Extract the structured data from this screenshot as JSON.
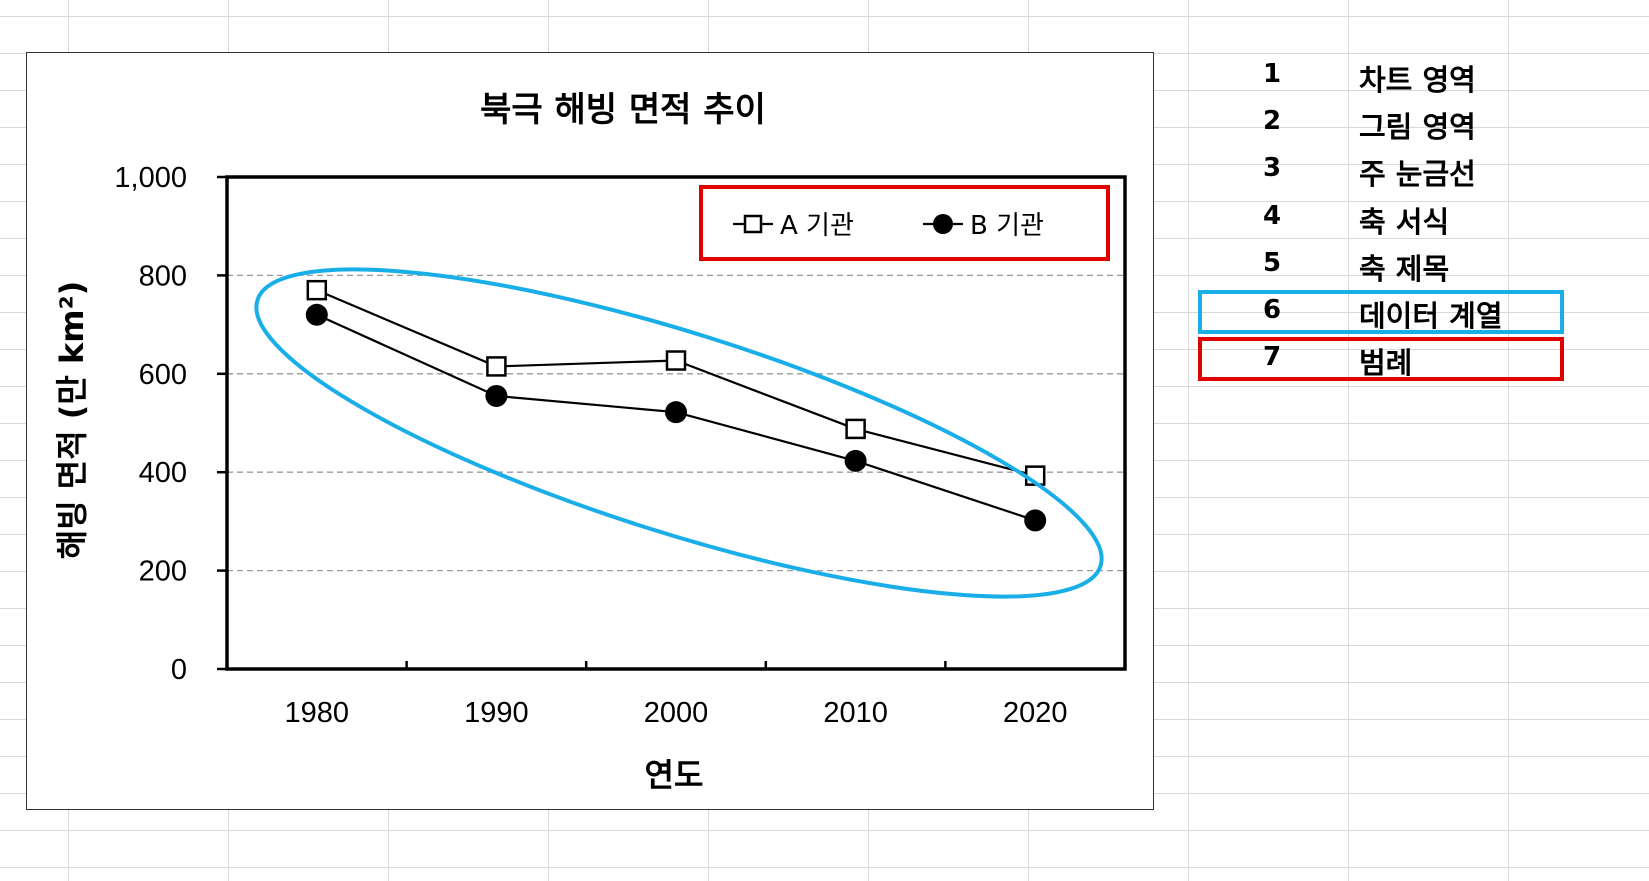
{
  "chart_data": {
    "type": "line",
    "title": "북극 해빙 면적 추이",
    "xlabel": "연도",
    "ylabel": "해빙 면적 (만 km²)",
    "categories": [
      "1980",
      "1990",
      "2000",
      "2010",
      "2020"
    ],
    "ylim": [
      0,
      1000
    ],
    "y_ticks": [
      "0",
      "200",
      "400",
      "600",
      "800",
      "1,000"
    ],
    "grid": "horizontal dashed",
    "legend_position": "top-right",
    "series": [
      {
        "name": "A 기관",
        "marker": "open-square",
        "values": [
          770,
          615,
          627,
          488,
          393
        ]
      },
      {
        "name": "B 기관",
        "marker": "filled-circle",
        "values": [
          720,
          555,
          522,
          423,
          302
        ]
      }
    ],
    "highlights": {
      "legend_box_color": "#e00000",
      "series_ellipse_color": "#1aaee8"
    }
  },
  "side_list": {
    "items": [
      {
        "num": "1",
        "label": "차트 영역"
      },
      {
        "num": "2",
        "label": "그림 영역"
      },
      {
        "num": "3",
        "label": "주 눈금선"
      },
      {
        "num": "4",
        "label": "축 서식"
      },
      {
        "num": "5",
        "label": "축 제목"
      },
      {
        "num": "6",
        "label": "데이터 계열",
        "highlight": "#1aaee8"
      },
      {
        "num": "7",
        "label": "범례",
        "highlight": "#e00000"
      }
    ]
  }
}
